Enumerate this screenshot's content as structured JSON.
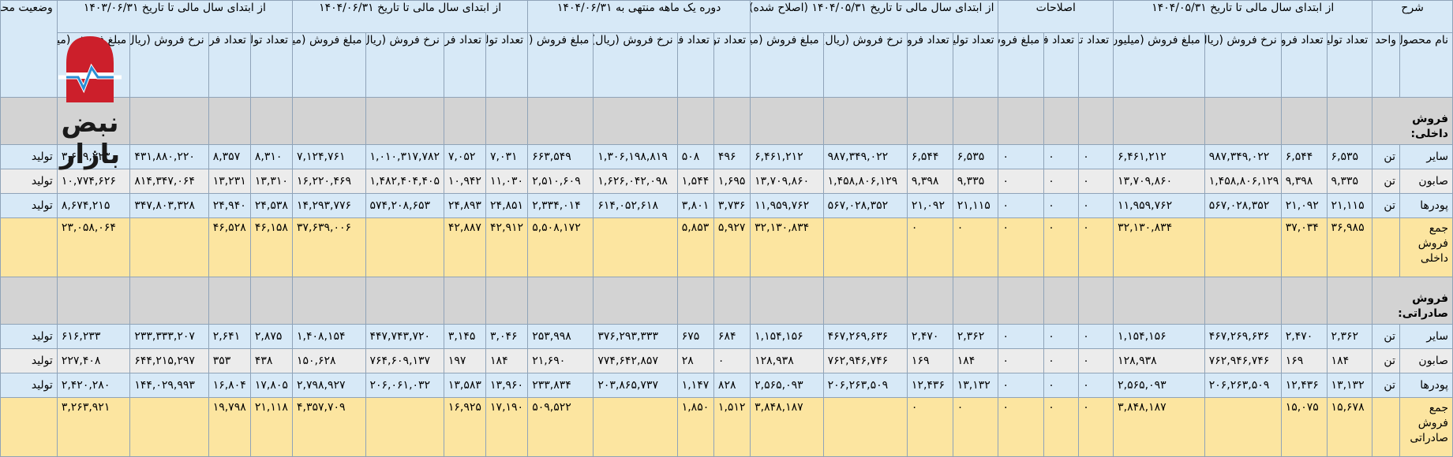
{
  "headers": {
    "groups": [
      "شرح",
      "از ابتدای سال مالی تا تاریخ ۱۴۰۴/۰۵/۳۱",
      "اصلاحات",
      "از ابتدای سال مالی تا تاریخ ۱۴۰۴/۰۵/۳۱ (اصلاح شده)",
      "دوره یک ماهه منتهی به ۱۴۰۴/۰۶/۳۱",
      "از ابتدای سال مالی تا تاریخ ۱۴۰۴/۰۶/۳۱",
      "از ابتدای سال مالی تا تاریخ ۱۴۰۳/۰۶/۳۱",
      "وضعیت محصول- واحد"
    ],
    "sub_desc": [
      "نام محصول",
      "واحد"
    ],
    "sub_a": [
      "تعداد تولید",
      "تعداد فروش",
      "نرخ فروش (ریال)",
      "مبلغ فروش (میلیون ریال)"
    ],
    "sub_adj": [
      "تعداد تولید",
      "تعداد فروش",
      "مبلغ فروش (میلیون ریال)"
    ],
    "sub_b": [
      "تعداد تولید",
      "تعداد فروش",
      "نرخ فروش (ریال)",
      "مبلغ فروش (میلیون ریال)"
    ],
    "sub_c": [
      "تعداد تولید",
      "تعداد فروش",
      "نرخ فروش (ریال)",
      "مبلغ فروش (میلیون ریال)"
    ],
    "sub_d": [
      "تعداد تولید",
      "تعداد فروش",
      "نرخ فروش (ریال)",
      "مبلغ فروش (میلیون ریال)"
    ],
    "sub_e": [
      "تعداد تولید",
      "تعداد فروش",
      "نرخ فروش (ریال)",
      "مبلغ فروش (میلیون ریال)"
    ]
  },
  "sections": [
    {
      "label": "فروش داخلی:",
      "rows": [
        [
          "سایر",
          "تن",
          "۶,۵۳۵",
          "۶,۵۴۴",
          "۹۸۷,۳۴۹,۰۲۲",
          "۶,۴۶۱,۲۱۲",
          "۰",
          "۰",
          "۰",
          "۶,۵۳۵",
          "۶,۵۴۴",
          "۹۸۷,۳۴۹,۰۲۲",
          "۶,۴۶۱,۲۱۲",
          "۴۹۶",
          "۵۰۸",
          "۱,۳۰۶,۱۹۸,۸۱۹",
          "۶۶۳,۵۴۹",
          "۷,۰۳۱",
          "۷,۰۵۲",
          "۱,۰۱۰,۳۱۷,۷۸۲",
          "۷,۱۲۴,۷۶۱",
          "۸,۳۱۰",
          "۸,۳۵۷",
          "۴۳۱,۸۸۰,۲۲۰",
          "۳,۶۰۹,۲۲۳",
          "تولید"
        ],
        [
          "صابون",
          "تن",
          "۹,۳۳۵",
          "۹,۳۹۸",
          "۱,۴۵۸,۸۰۶,۱۲۹",
          "۱۳,۷۰۹,۸۶۰",
          "۰",
          "۰",
          "۰",
          "۹,۳۳۵",
          "۹,۳۹۸",
          "۱,۴۵۸,۸۰۶,۱۲۹",
          "۱۳,۷۰۹,۸۶۰",
          "۱,۶۹۵",
          "۱,۵۴۴",
          "۱,۶۲۶,۰۴۲,۰۹۸",
          "۲,۵۱۰,۶۰۹",
          "۱۱,۰۳۰",
          "۱۰,۹۴۲",
          "۱,۴۸۲,۴۰۴,۴۰۵",
          "۱۶,۲۲۰,۴۶۹",
          "۱۳,۳۱۰",
          "۱۳,۲۳۱",
          "۸۱۴,۳۴۷,۰۶۴",
          "۱۰,۷۷۴,۶۲۶",
          "تولید"
        ],
        [
          "پودرها",
          "تن",
          "۲۱,۱۱۵",
          "۲۱,۰۹۲",
          "۵۶۷,۰۲۸,۳۵۲",
          "۱۱,۹۵۹,۷۶۲",
          "۰",
          "۰",
          "۰",
          "۲۱,۱۱۵",
          "۲۱,۰۹۲",
          "۵۶۷,۰۲۸,۳۵۲",
          "۱۱,۹۵۹,۷۶۲",
          "۳,۷۳۶",
          "۳,۸۰۱",
          "۶۱۴,۰۵۲,۶۱۸",
          "۲,۳۳۴,۰۱۴",
          "۲۴,۸۵۱",
          "۲۴,۸۹۳",
          "۵۷۴,۲۰۸,۶۵۳",
          "۱۴,۲۹۳,۷۷۶",
          "۲۴,۵۳۸",
          "۲۴,۹۴۰",
          "۳۴۷,۸۰۳,۳۲۸",
          "۸,۶۷۴,۲۱۵",
          "تولید"
        ]
      ],
      "total": [
        "جمع فروش داخلی",
        "",
        "۳۶,۹۸۵",
        "۳۷,۰۳۴",
        "",
        "۳۲,۱۳۰,۸۳۴",
        "۰",
        "۰",
        "۰",
        "۰",
        "۰",
        "",
        "۳۲,۱۳۰,۸۳۴",
        "۵,۹۲۷",
        "۵,۸۵۳",
        "",
        "۵,۵۰۸,۱۷۲",
        "۴۲,۹۱۲",
        "۴۲,۸۸۷",
        "",
        "۳۷,۶۳۹,۰۰۶",
        "۴۶,۱۵۸",
        "۴۶,۵۲۸",
        "",
        "۲۳,۰۵۸,۰۶۴",
        ""
      ]
    },
    {
      "label": "فروش صادراتی:",
      "rows": [
        [
          "سایر",
          "تن",
          "۲,۳۶۲",
          "۲,۴۷۰",
          "۴۶۷,۲۶۹,۶۳۶",
          "۱,۱۵۴,۱۵۶",
          "۰",
          "۰",
          "۰",
          "۲,۳۶۲",
          "۲,۴۷۰",
          "۴۶۷,۲۶۹,۶۳۶",
          "۱,۱۵۴,۱۵۶",
          "۶۸۴",
          "۶۷۵",
          "۳۷۶,۲۹۳,۳۳۳",
          "۲۵۳,۹۹۸",
          "۳,۰۴۶",
          "۳,۱۴۵",
          "۴۴۷,۷۴۳,۷۲۰",
          "۱,۴۰۸,۱۵۴",
          "۲,۸۷۵",
          "۲,۶۴۱",
          "۲۳۳,۳۳۳,۲۰۷",
          "۶۱۶,۲۳۳",
          "تولید"
        ],
        [
          "صابون",
          "تن",
          "۱۸۴",
          "۱۶۹",
          "۷۶۲,۹۴۶,۷۴۶",
          "۱۲۸,۹۳۸",
          "۰",
          "۰",
          "۰",
          "۱۸۴",
          "۱۶۹",
          "۷۶۲,۹۴۶,۷۴۶",
          "۱۲۸,۹۳۸",
          "۰",
          "۲۸",
          "۷۷۴,۶۴۲,۸۵۷",
          "۲۱,۶۹۰",
          "۱۸۴",
          "۱۹۷",
          "۷۶۴,۶۰۹,۱۳۷",
          "۱۵۰,۶۲۸",
          "۴۳۸",
          "۳۵۳",
          "۶۴۴,۲۱۵,۲۹۷",
          "۲۲۷,۴۰۸",
          "تولید"
        ],
        [
          "پودرها",
          "تن",
          "۱۳,۱۳۲",
          "۱۲,۴۳۶",
          "۲۰۶,۲۶۳,۵۰۹",
          "۲,۵۶۵,۰۹۳",
          "۰",
          "۰",
          "۰",
          "۱۳,۱۳۲",
          "۱۲,۴۳۶",
          "۲۰۶,۲۶۳,۵۰۹",
          "۲,۵۶۵,۰۹۳",
          "۸۲۸",
          "۱,۱۴۷",
          "۲۰۳,۸۶۵,۷۳۷",
          "۲۳۳,۸۳۴",
          "۱۳,۹۶۰",
          "۱۳,۵۸۳",
          "۲۰۶,۰۶۱,۰۳۲",
          "۲,۷۹۸,۹۲۷",
          "۱۷,۸۰۵",
          "۱۶,۸۰۴",
          "۱۴۴,۰۲۹,۹۹۳",
          "۲,۴۲۰,۲۸۰",
          "تولید"
        ]
      ],
      "total": [
        "جمع فروش صادراتی",
        "",
        "۱۵,۶۷۸",
        "۱۵,۰۷۵",
        "",
        "۳,۸۴۸,۱۸۷",
        "۰",
        "۰",
        "۰",
        "۰",
        "۰",
        "",
        "۳,۸۴۸,۱۸۷",
        "۱,۵۱۲",
        "۱,۸۵۰",
        "",
        "۵۰۹,۵۲۲",
        "۱۷,۱۹۰",
        "۱۶,۹۲۵",
        "",
        "۴,۳۵۷,۷۰۹",
        "۲۱,۱۱۸",
        "۱۹,۷۹۸",
        "",
        "۳,۲۶۳,۹۲۱",
        ""
      ]
    }
  ],
  "watermark": {
    "text": "نبض بازار",
    "icon": "heartbeat-logo-icon",
    "color": "#cc1f2b"
  }
}
